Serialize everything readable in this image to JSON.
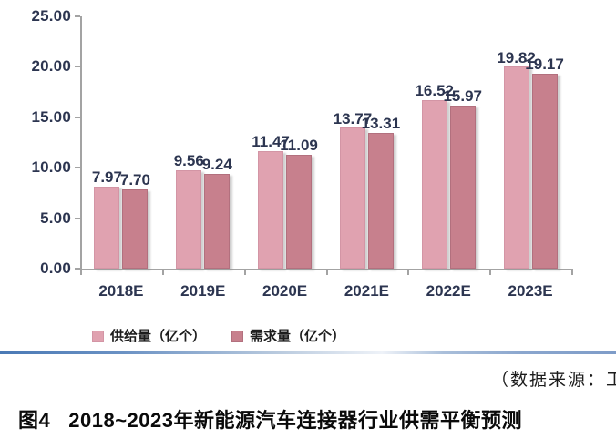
{
  "chart_data": {
    "type": "bar",
    "title": "",
    "categories": [
      "2018E",
      "2019E",
      "2020E",
      "2021E",
      "2022E",
      "2023E"
    ],
    "series": [
      {
        "name": "供给量（亿个）",
        "values": [
          7.97,
          9.56,
          11.47,
          13.77,
          16.52,
          19.82
        ],
        "labels": [
          "7.97",
          "9.56",
          "11.47",
          "13.77",
          "16.52",
          "19.82"
        ],
        "color": "#e0a2b0",
        "border_color": "#d395a5"
      },
      {
        "name": "需求量（亿个）",
        "values": [
          7.7,
          9.24,
          11.09,
          13.31,
          15.97,
          19.17
        ],
        "labels": [
          "7.70",
          "9.24",
          "11.09",
          "13.31",
          "15.97",
          "19.17"
        ],
        "color": "#c7808d",
        "border_color": "#b2707e"
      }
    ],
    "ylim": [
      0,
      25
    ],
    "y_ticks": [
      "25.00",
      "20.00",
      "15.00",
      "10.00",
      "5.00",
      "0.00"
    ],
    "grid": false,
    "legend_position": "bottom",
    "xlabel": "",
    "ylabel": ""
  },
  "footer": {
    "source_note": "（数据来源：工",
    "caption_label": "图4",
    "caption_title": "2018~2023年新能源汽车连接器行业供需平衡预测"
  },
  "colors": {
    "axis_gray": "#a3a3a3",
    "value_label_text": "#2c3550",
    "divider_blue": "#4a79b5"
  }
}
